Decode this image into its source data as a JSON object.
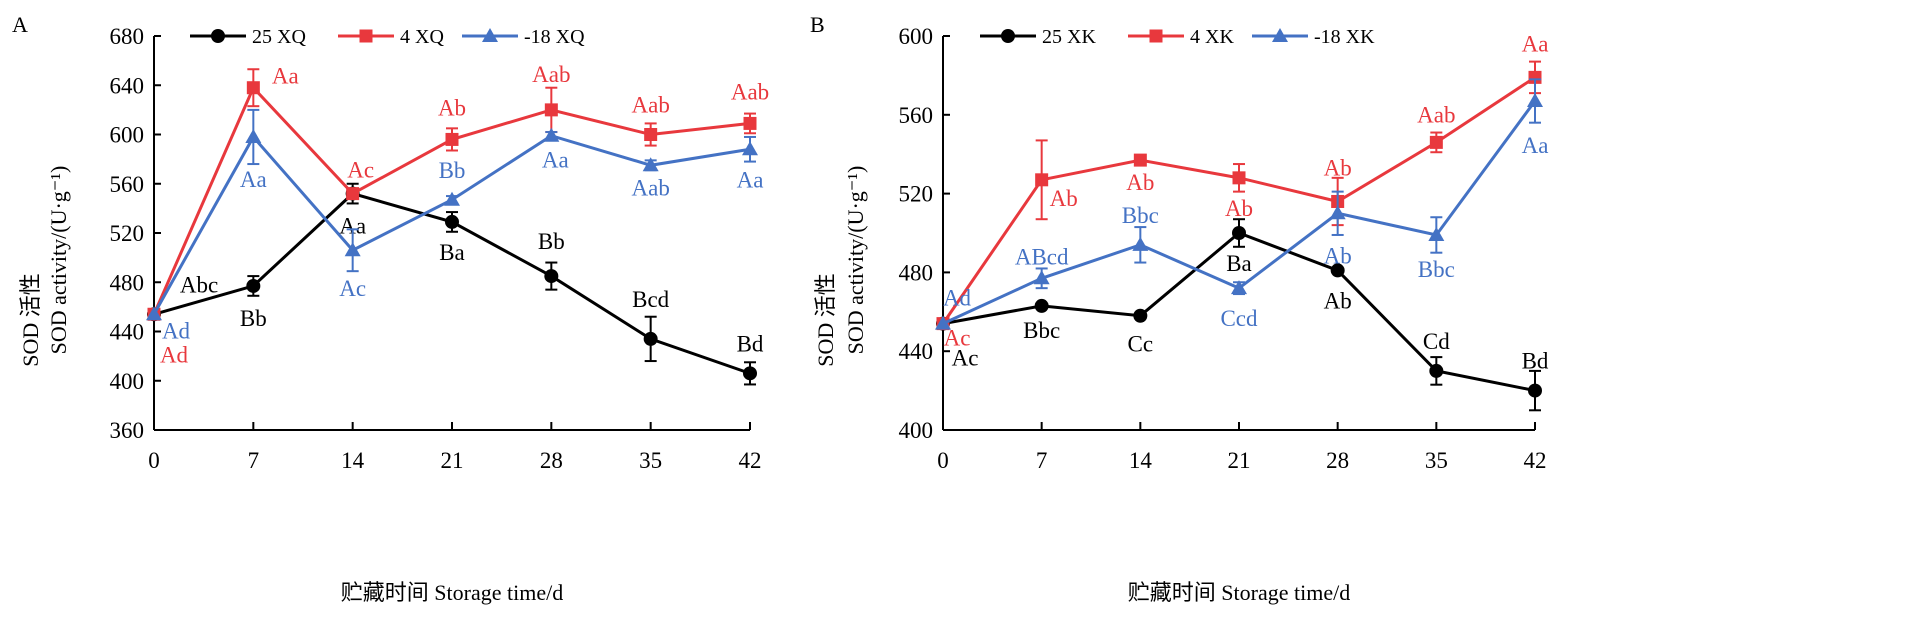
{
  "chart_data": [
    {
      "type": "line",
      "panel_label": "A",
      "ylabel_cn": "SOD 活性",
      "ylabel": "SOD activity/(U·g⁻¹)",
      "xlabel": "贮藏时间 Storage time/d",
      "x": [
        0,
        7,
        14,
        21,
        28,
        35,
        42
      ],
      "ylim": [
        360,
        680
      ],
      "yticks": [
        360,
        400,
        440,
        480,
        520,
        560,
        600,
        640,
        680
      ],
      "legend_position": "top",
      "series": [
        {
          "name": "25 XQ",
          "color": "#000000",
          "marker": "circle",
          "values": [
            454,
            477,
            552,
            529,
            485,
            434,
            406
          ],
          "errors": [
            0,
            8,
            8,
            8,
            11,
            18,
            9
          ],
          "labels": [
            "Abc",
            "Bb",
            "Aa",
            "Ba",
            "Bb",
            "Bcd",
            "Bd"
          ]
        },
        {
          "name": "4 XQ",
          "color": "#e8383d",
          "marker": "square",
          "values": [
            454,
            638,
            552,
            596,
            620,
            600,
            609
          ],
          "errors": [
            0,
            15,
            0,
            9,
            18,
            9,
            8
          ],
          "labels": [
            "Ad",
            "Aa",
            "Ac",
            "Ab",
            "Aab",
            "Aab",
            "Aab"
          ]
        },
        {
          "name": "-18 XQ",
          "color": "#4472c4",
          "marker": "triangle",
          "values": [
            454,
            598,
            506,
            547,
            599,
            575,
            588
          ],
          "errors": [
            0,
            22,
            17,
            3,
            3,
            4,
            10
          ],
          "labels": [
            "Ad",
            "Aa",
            "Ac",
            "Bb",
            "Aa",
            "Aab",
            "Aa"
          ]
        }
      ]
    },
    {
      "type": "line",
      "panel_label": "B",
      "ylabel_cn": "SOD 活性",
      "ylabel": "SOD activity/(U·g⁻¹)",
      "xlabel": "贮藏时间 Storage time/d",
      "x": [
        0,
        7,
        14,
        21,
        28,
        35,
        42
      ],
      "ylim": [
        400,
        600
      ],
      "yticks": [
        400,
        440,
        480,
        520,
        560,
        600
      ],
      "legend_position": "top",
      "series": [
        {
          "name": "25 XK",
          "color": "#000000",
          "marker": "circle",
          "values": [
            454,
            463,
            458,
            500,
            481,
            430,
            420
          ],
          "errors": [
            0,
            1,
            1,
            7,
            1,
            7,
            10
          ],
          "labels": [
            "Ac",
            "Bbc",
            "Cc",
            "Ba",
            "Ab",
            "Cd",
            "Bd"
          ]
        },
        {
          "name": "4 XK",
          "color": "#e8383d",
          "marker": "square",
          "values": [
            454,
            527,
            537,
            528,
            516,
            546,
            579
          ],
          "errors": [
            0,
            20,
            2,
            7,
            12,
            5,
            8
          ],
          "labels": [
            "Ac",
            "Ab",
            "Ab",
            "Ab",
            "Ab",
            "Aab",
            "Aa"
          ]
        },
        {
          "name": "-18 XK",
          "color": "#4472c4",
          "marker": "triangle",
          "values": [
            454,
            477,
            494,
            472,
            510,
            499,
            567
          ],
          "errors": [
            0,
            5,
            9,
            3,
            11,
            9,
            11
          ],
          "labels": [
            "Ad",
            "ABcd",
            "Bbc",
            "Ccd",
            "Ab",
            "Bbc",
            "Aa"
          ]
        }
      ]
    }
  ]
}
